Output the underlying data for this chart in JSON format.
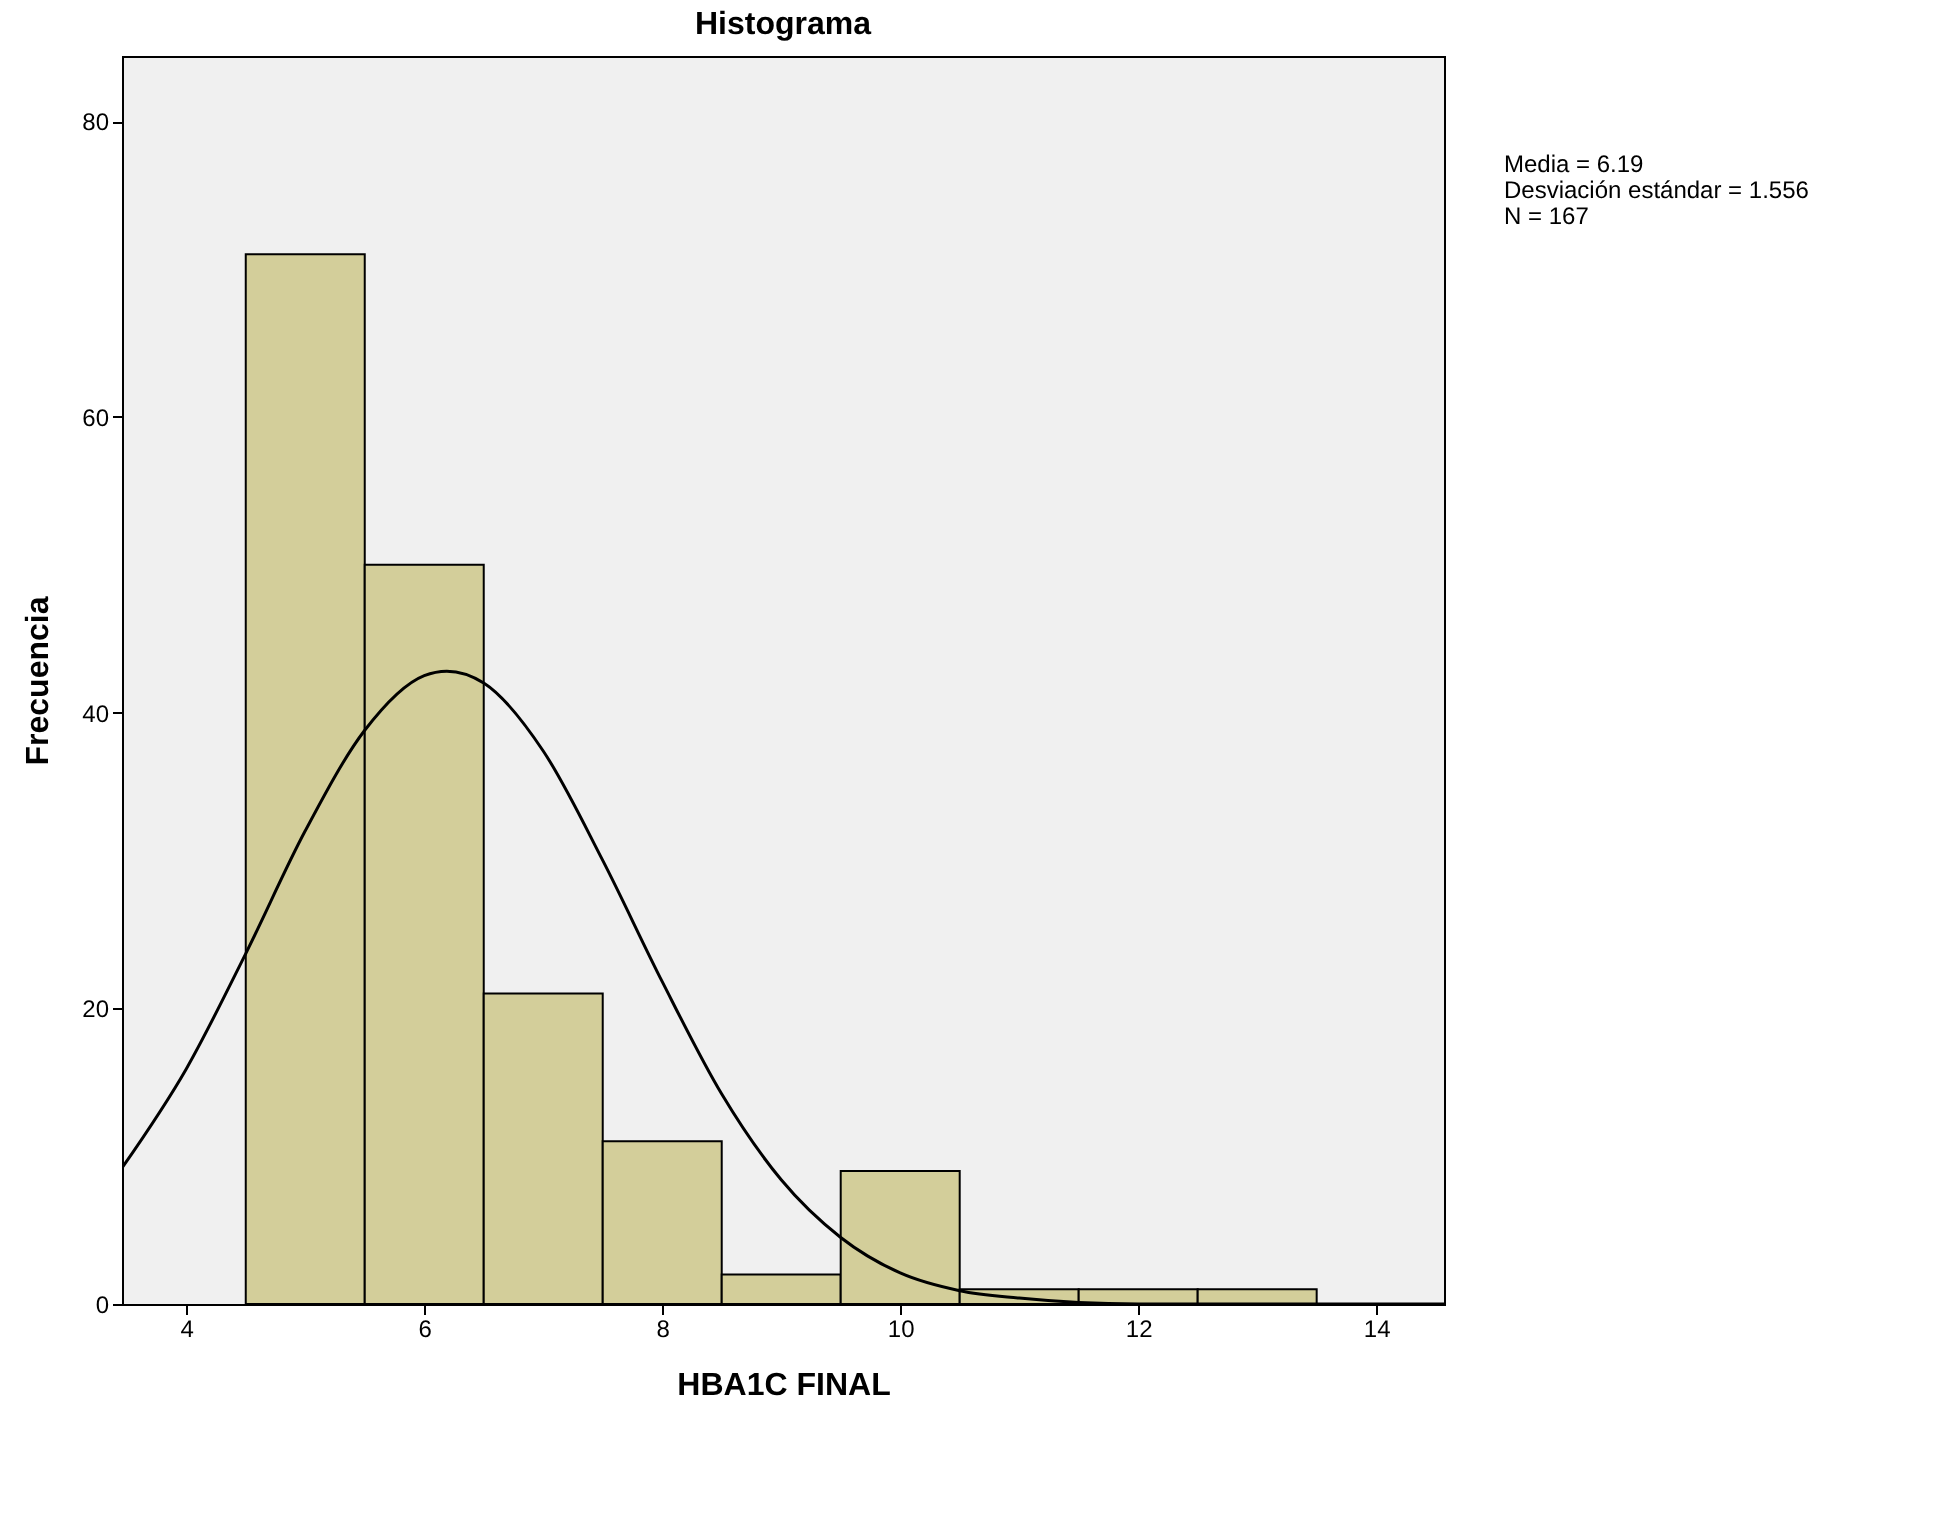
{
  "chart_data": {
    "type": "histogram",
    "title": "Histograma",
    "xlabel": "HBA1C FINAL",
    "ylabel": "Frecuencia",
    "bins": [
      4.5,
      5.5,
      6.5,
      7.5,
      8.5,
      9.5,
      10.5,
      11.5,
      12.5,
      13.5
    ],
    "values": [
      71,
      50,
      21,
      11,
      2,
      9,
      1,
      1,
      1
    ],
    "color": "#d3ce9a",
    "series": [
      {
        "type": "line",
        "color": "#000000",
        "x": [
          3.46,
          4,
          4.5,
          5,
          5.5,
          6,
          6.19,
          6.5,
          7,
          7.5,
          8,
          8.5,
          9,
          9.5,
          10,
          10.5,
          11,
          12,
          13,
          14.57
        ],
        "values": [
          9.2,
          15.9,
          23.7,
          32.0,
          38.8,
          42.5,
          42.8,
          42.0,
          37.4,
          30.0,
          21.8,
          14.2,
          8.4,
          4.5,
          2.1,
          0.9,
          0.4,
          0.0,
          0.0,
          0.0
        ]
      }
    ],
    "xlim": [
      3.46,
      14.57
    ],
    "xticks": [
      4,
      6,
      8,
      10,
      12,
      14
    ],
    "ylim": [
      0,
      84.4
    ],
    "yticks": [
      0,
      20,
      40,
      60,
      80
    ],
    "annotations": [
      "Media = 6.19",
      "Desviación estándar = 1.556",
      "N = 167"
    ]
  }
}
